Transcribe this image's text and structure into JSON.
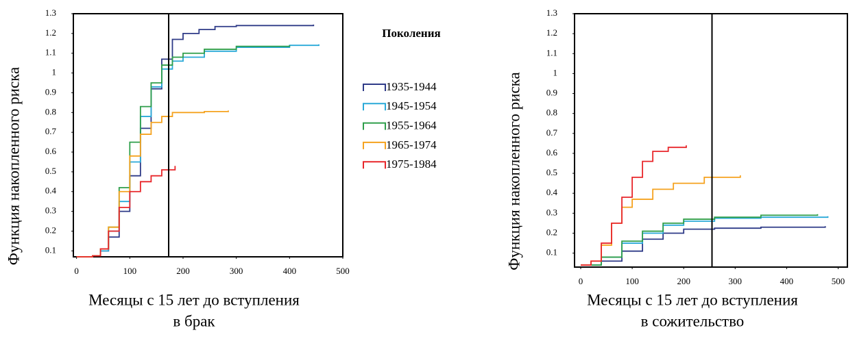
{
  "chart_data": [
    {
      "type": "line",
      "ylabel": "Функция накопленного риска",
      "xlabel": [
        "Месяцы с 15 лет до вступления",
        "в брак"
      ],
      "xlim": [
        -6,
        500
      ],
      "xticks": [
        0,
        100,
        200,
        300,
        400,
        500
      ],
      "ylim": [
        0.07,
        1.3
      ],
      "yticks": [
        0.1,
        0.2,
        0.3,
        0.4,
        0.5,
        0.6,
        0.7,
        0.8,
        0.9,
        1,
        1.1,
        1.2,
        1.3
      ],
      "vline": 173,
      "series": [
        {
          "color": "#2e3a87",
          "x": [
            0,
            30,
            45,
            60,
            80,
            100,
            120,
            140,
            160,
            180,
            200,
            230,
            260,
            300,
            445
          ],
          "values": [
            0.07,
            0.075,
            0.1,
            0.17,
            0.3,
            0.48,
            0.72,
            0.92,
            1.07,
            1.17,
            1.2,
            1.22,
            1.235,
            1.24,
            1.245
          ]
        },
        {
          "color": "#29a9d8",
          "x": [
            0,
            30,
            45,
            60,
            80,
            100,
            120,
            140,
            160,
            180,
            200,
            240,
            300,
            400,
            455
          ],
          "values": [
            0.07,
            0.075,
            0.1,
            0.2,
            0.35,
            0.55,
            0.78,
            0.93,
            1.02,
            1.06,
            1.08,
            1.11,
            1.13,
            1.14,
            1.145
          ]
        },
        {
          "color": "#2e9e4a",
          "x": [
            0,
            30,
            45,
            60,
            80,
            100,
            120,
            140,
            160,
            180,
            200,
            240,
            300,
            400
          ],
          "values": [
            0.07,
            0.075,
            0.11,
            0.22,
            0.42,
            0.65,
            0.83,
            0.95,
            1.04,
            1.08,
            1.1,
            1.12,
            1.135,
            1.14
          ]
        },
        {
          "color": "#f5a21e",
          "x": [
            0,
            30,
            45,
            60,
            80,
            100,
            120,
            140,
            160,
            180,
            200,
            240,
            285
          ],
          "values": [
            0.07,
            0.075,
            0.11,
            0.22,
            0.4,
            0.58,
            0.69,
            0.75,
            0.78,
            0.8,
            0.8,
            0.805,
            0.81
          ]
        },
        {
          "color": "#e8262a",
          "x": [
            0,
            30,
            45,
            60,
            80,
            100,
            120,
            140,
            160,
            185
          ],
          "values": [
            0.07,
            0.075,
            0.11,
            0.2,
            0.32,
            0.4,
            0.45,
            0.48,
            0.51,
            0.53
          ]
        }
      ]
    },
    {
      "type": "line",
      "ylabel": "Функция накопленного риска",
      "xlabel": [
        "Месяцы с 15 лет до вступления",
        "в сожительство"
      ],
      "xlim": [
        -12,
        518
      ],
      "xticks": [
        0,
        100,
        200,
        300,
        400,
        500
      ],
      "ylim": [
        0.03,
        1.3
      ],
      "yticks": [
        0.1,
        0.2,
        0.3,
        0.4,
        0.5,
        0.6,
        0.7,
        0.8,
        0.9,
        1,
        1.1,
        1.2,
        1.3
      ],
      "vline": 255,
      "series": [
        {
          "color": "#2e3a87",
          "x": [
            0,
            40,
            80,
            120,
            160,
            200,
            260,
            350,
            475
          ],
          "values": [
            0.04,
            0.06,
            0.11,
            0.17,
            0.2,
            0.22,
            0.225,
            0.23,
            0.235
          ]
        },
        {
          "color": "#29a9d8",
          "x": [
            0,
            40,
            80,
            120,
            160,
            200,
            260,
            350,
            480
          ],
          "values": [
            0.04,
            0.08,
            0.15,
            0.2,
            0.24,
            0.26,
            0.275,
            0.28,
            0.285
          ]
        },
        {
          "color": "#2e9e4a",
          "x": [
            0,
            40,
            80,
            120,
            160,
            200,
            260,
            350,
            460
          ],
          "values": [
            0.04,
            0.08,
            0.16,
            0.21,
            0.25,
            0.27,
            0.28,
            0.29,
            0.295
          ]
        },
        {
          "color": "#f5a21e",
          "x": [
            0,
            20,
            40,
            60,
            80,
            100,
            140,
            180,
            240,
            310
          ],
          "values": [
            0.04,
            0.06,
            0.14,
            0.25,
            0.33,
            0.37,
            0.42,
            0.45,
            0.48,
            0.49
          ]
        },
        {
          "color": "#e8262a",
          "x": [
            0,
            20,
            40,
            60,
            80,
            100,
            120,
            140,
            170,
            205
          ],
          "values": [
            0.04,
            0.06,
            0.15,
            0.25,
            0.38,
            0.48,
            0.56,
            0.61,
            0.63,
            0.64
          ]
        }
      ]
    }
  ],
  "legend": {
    "title": "Поколения",
    "items": [
      {
        "name": "1935-1944",
        "color": "#2e3a87"
      },
      {
        "name": "1945-1954",
        "color": "#29a9d8"
      },
      {
        "name": "1955-1964",
        "color": "#2e9e4a"
      },
      {
        "name": "1965-1974",
        "color": "#f5a21e"
      },
      {
        "name": "1975-1984",
        "color": "#e8262a"
      }
    ]
  }
}
